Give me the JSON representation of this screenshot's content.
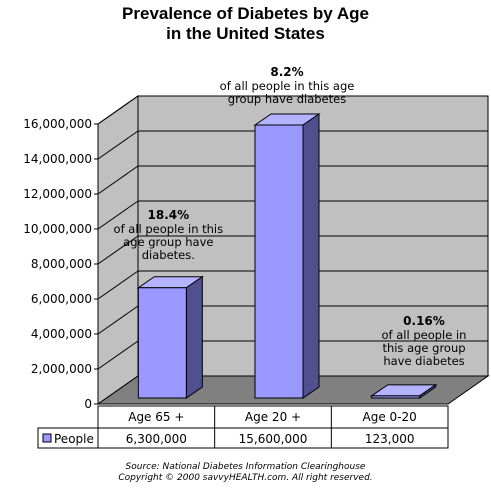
{
  "chart_data": {
    "type": "bar",
    "title": [
      "Prevalence of Diabetes by Age",
      "in the United States"
    ],
    "categories": [
      "Age 65 +",
      "Age 20 +",
      "Age 0-20"
    ],
    "series": [
      {
        "name": "People",
        "values": [
          6300000,
          15600000,
          123000
        ],
        "value_labels": [
          "6,300,000",
          "15,600,000",
          "123,000"
        ]
      }
    ],
    "ylim": [
      0,
      16000000
    ],
    "yticks": [
      0,
      2000000,
      4000000,
      6000000,
      8000000,
      10000000,
      12000000,
      14000000,
      16000000
    ],
    "ytick_labels": [
      "0",
      "2,000,000",
      "4,000,000",
      "6,000,000",
      "8,000,000",
      "10,000,000",
      "12,000,000",
      "14,000,000",
      "16,000,000"
    ],
    "annotations": [
      {
        "pct": "18.4%",
        "lines": [
          "of all people in this",
          "age group have",
          "diabetes."
        ]
      },
      {
        "pct": "8.2%",
        "lines": [
          "of all people in this age",
          "group have diabetes"
        ]
      },
      {
        "pct": "0.16%",
        "lines": [
          "of all people in",
          "this age group",
          "have diabetes"
        ]
      }
    ],
    "legend_placement": "data-table",
    "grid": true,
    "colors": {
      "bar_front": "#9999ff",
      "bar_side": "#505090",
      "bar_top": "#b3b3ff",
      "wall": "#c0c0c0",
      "floor": "#808080"
    }
  },
  "footer": {
    "source": "Source: National Diabetes Information Clearinghouse",
    "copyright": "Copyright © 2000 savvyHEALTH.com.  All right reserved."
  }
}
